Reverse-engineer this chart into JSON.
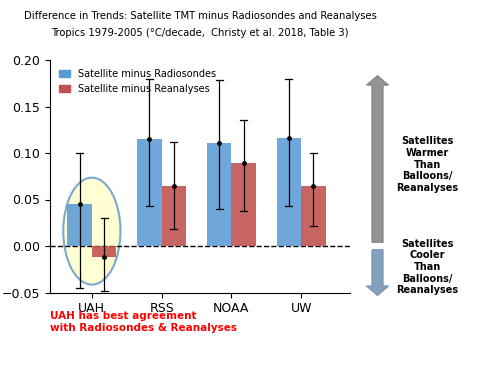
{
  "title_line1": "Difference in Trends: Satellite TMT minus Radiosondes and Reanalyses",
  "title_line2": "Tropics 1979-2005 (°C/decade,  Christy et al. 2018, Table 3)",
  "categories": [
    "UAH",
    "RSS",
    "NOAA",
    "UW"
  ],
  "blue_values": [
    0.045,
    0.115,
    0.111,
    0.116
  ],
  "red_values": [
    -0.012,
    0.065,
    0.089,
    0.064
  ],
  "blue_errors_upper": [
    0.1,
    0.18,
    0.178,
    0.18
  ],
  "blue_errors_lower": [
    -0.045,
    0.043,
    0.04,
    0.043
  ],
  "red_errors_upper": [
    0.03,
    0.112,
    0.135,
    0.1
  ],
  "red_errors_lower": [
    -0.048,
    0.018,
    0.038,
    0.022
  ],
  "ylim": [
    -0.05,
    0.2
  ],
  "yticks": [
    -0.05,
    0.0,
    0.05,
    0.1,
    0.15,
    0.2
  ],
  "blue_color": "#5B9BD5",
  "red_color": "#C0504D",
  "legend_blue": "Satellite minus Radiosondes",
  "legend_red": "Satellite minus Reanalyses",
  "annotation_text": "UAH has best agreement\nwith Radiosondes & Reanalyses",
  "right_text_upper": "Satellites\nWarmer\nThan\nBalloons/\nReanalyses",
  "right_text_lower": "Satellites\nCooler\nThan\nBalloons/\nReanalyses",
  "bar_width": 0.35,
  "arrow_color_up": "#808080",
  "arrow_color_down": "#7090B0"
}
